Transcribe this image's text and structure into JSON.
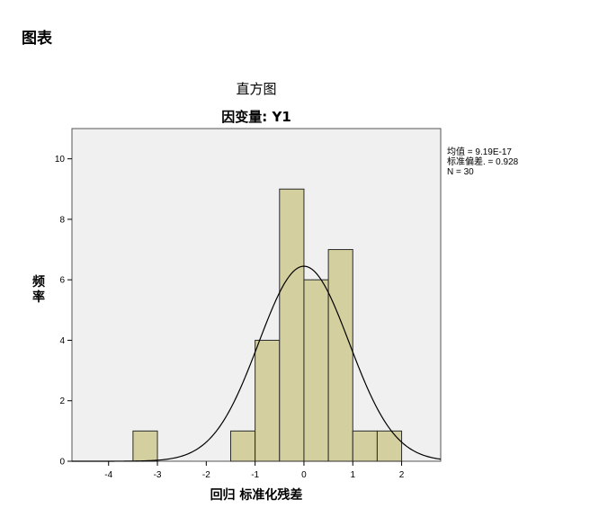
{
  "page": {
    "heading": "图表"
  },
  "chart_data": {
    "type": "bar",
    "title": "直方图",
    "subtitle": "因变量: Y1",
    "xlabel": "回归 标准化残差",
    "ylabel": "频率",
    "xlim": [
      -4.75,
      2.8
    ],
    "ylim": [
      0,
      11
    ],
    "x_ticks": [
      -4,
      -3,
      -2,
      -1,
      0,
      1,
      2
    ],
    "y_ticks": [
      0,
      2,
      4,
      6,
      8,
      10
    ],
    "bin_width": 0.5,
    "bins": [
      {
        "start": -3.5,
        "end": -3.0,
        "count": 1
      },
      {
        "start": -1.5,
        "end": -1.0,
        "count": 1
      },
      {
        "start": -1.0,
        "end": -0.5,
        "count": 4
      },
      {
        "start": -0.5,
        "end": 0.0,
        "count": 9
      },
      {
        "start": 0.0,
        "end": 0.5,
        "count": 6
      },
      {
        "start": 0.5,
        "end": 1.0,
        "count": 7
      },
      {
        "start": 1.0,
        "end": 1.5,
        "count": 1
      },
      {
        "start": 1.5,
        "end": 2.0,
        "count": 1
      }
    ],
    "normal_curve": {
      "mean": 9.19e-17,
      "sd": 0.928,
      "n": 30
    },
    "stats_text": [
      "均值 = 9.19E-17",
      "标准偏差. = 0.928",
      "N = 30"
    ],
    "colors": {
      "bar_fill": "#d4cf9e",
      "bar_stroke": "#2b2b2b",
      "plot_bg": "#f0f0f0",
      "curve": "#000000"
    }
  }
}
